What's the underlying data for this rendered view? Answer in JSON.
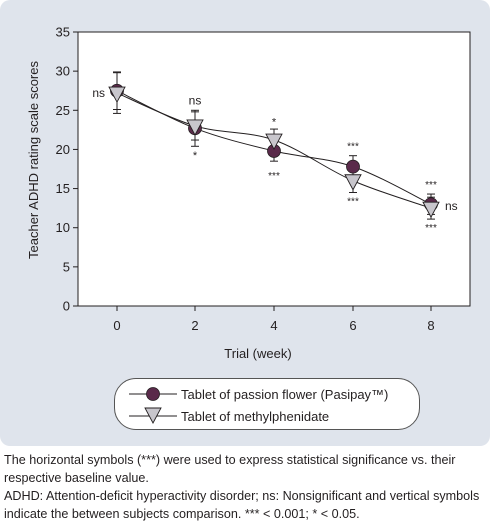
{
  "chart_data": {
    "type": "line",
    "ylabel": "Teacher ADHD rating scale scores",
    "xlabel": "Trial (week)",
    "x": [
      0,
      2,
      4,
      6,
      8
    ],
    "xticks": [
      "0",
      "2",
      "4",
      "6",
      "8"
    ],
    "ylim": [
      0,
      35
    ],
    "yticks": [
      "0",
      "5",
      "10",
      "15",
      "20",
      "25",
      "30",
      "35"
    ],
    "grid": false,
    "legend_position": "bottom",
    "series": [
      {
        "name": "Tablet of passion flower (Pasipay™)",
        "marker": "circle",
        "color": "#5a2a4a",
        "values": [
          27.5,
          22.7,
          19.8,
          17.8,
          13.0
        ],
        "error": [
          2.4,
          2.3,
          1.3,
          1.4,
          1.3
        ],
        "annotations": [
          "",
          "",
          "***",
          "***",
          "***"
        ]
      },
      {
        "name": "Tablet of methylphenidate",
        "marker": "triangle-down",
        "color": "#c8c6cc",
        "values": [
          27.2,
          23.0,
          21.2,
          16.0,
          12.5
        ],
        "error": [
          2.6,
          1.8,
          1.4,
          1.5,
          1.4
        ],
        "annotations": [
          "",
          "",
          "",
          "***",
          "***"
        ]
      }
    ],
    "between_labels": [
      {
        "x": 0,
        "label": "ns",
        "pos": "left"
      },
      {
        "x": 2,
        "label": "ns",
        "pos": "above"
      },
      {
        "x": 2,
        "label": "*",
        "pos": "below"
      },
      {
        "x": 4,
        "label": "*",
        "pos": "above"
      },
      {
        "x": 8,
        "label": "ns",
        "pos": "right"
      }
    ]
  },
  "caption": {
    "line1": "The horizontal symbols (***) were used to express statistical significance vs. their respective baseline value.",
    "line2": "ADHD: Attention-deficit hyperactivity disorder; ns: Nonsignificant and vertical symbols indicate the between subjects comparison. *** < 0.001; * < 0.05."
  }
}
